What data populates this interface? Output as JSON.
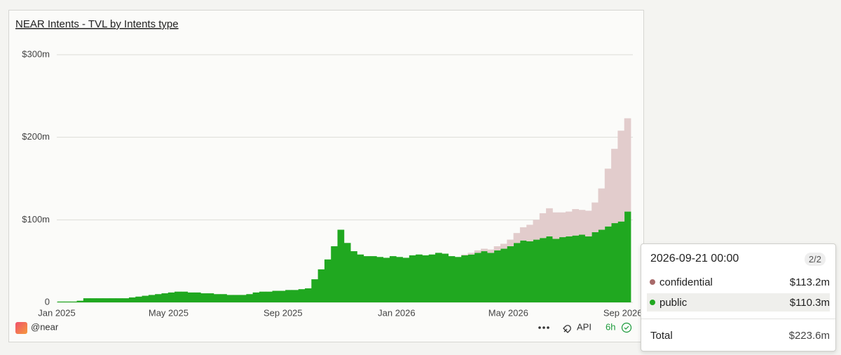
{
  "chart_data": {
    "type": "bar",
    "stacked": true,
    "title": "NEAR Intents - TVL by Intents type",
    "x": [
      "2025-01-05",
      "2025-01-12",
      "2025-01-19",
      "2025-01-26",
      "2025-02-02",
      "2025-02-09",
      "2025-02-16",
      "2025-02-23",
      "2025-03-02",
      "2025-03-09",
      "2025-03-16",
      "2025-03-23",
      "2025-03-30",
      "2025-04-06",
      "2025-04-13",
      "2025-04-20",
      "2025-04-27",
      "2025-05-04",
      "2025-05-11",
      "2025-05-18",
      "2025-05-25",
      "2025-06-01",
      "2025-06-08",
      "2025-06-15",
      "2025-06-22",
      "2025-06-29",
      "2025-07-06",
      "2025-07-13",
      "2025-07-20",
      "2025-07-27",
      "2025-08-03",
      "2025-08-10",
      "2025-08-17",
      "2025-08-24",
      "2025-08-31",
      "2025-09-07",
      "2025-09-14",
      "2025-09-21",
      "2025-09-28",
      "2025-10-05",
      "2025-10-12",
      "2025-10-19",
      "2025-10-26",
      "2025-11-02",
      "2025-11-09",
      "2025-11-16",
      "2025-11-23",
      "2025-11-30",
      "2025-12-07",
      "2025-12-14",
      "2025-12-21",
      "2025-12-28",
      "2026-01-04",
      "2026-01-11",
      "2026-01-18",
      "2026-01-25",
      "2026-02-01",
      "2026-02-08",
      "2026-02-15",
      "2026-02-22",
      "2026-03-01",
      "2026-03-08",
      "2026-03-15",
      "2026-03-22",
      "2026-03-29",
      "2026-04-05",
      "2026-04-12",
      "2026-04-19",
      "2026-04-26",
      "2026-05-03",
      "2026-05-10",
      "2026-05-17",
      "2026-05-24",
      "2026-05-31",
      "2026-06-07",
      "2026-06-14",
      "2026-06-21",
      "2026-06-28",
      "2026-07-05",
      "2026-07-12",
      "2026-07-19",
      "2026-07-26",
      "2026-08-02",
      "2026-08-09",
      "2026-08-16",
      "2026-08-23",
      "2026-08-30",
      "2026-09-06"
    ],
    "series": [
      {
        "name": "public",
        "color": "#20a820",
        "values": [
          1,
          1,
          1,
          2,
          5,
          5,
          5,
          5,
          5,
          5,
          5,
          6,
          7,
          8,
          9,
          10,
          11,
          12,
          13,
          13,
          12,
          12,
          11,
          11,
          10,
          10,
          9,
          9,
          9,
          10,
          12,
          13,
          13,
          14,
          14,
          15,
          15,
          16,
          17,
          28,
          40,
          52,
          68,
          88,
          72,
          62,
          58,
          56,
          56,
          55,
          54,
          56,
          55,
          54,
          57,
          58,
          57,
          58,
          60,
          59,
          56,
          55,
          57,
          58,
          60,
          62,
          60,
          63,
          65,
          68,
          72,
          75,
          74,
          76,
          78,
          80,
          77,
          79,
          80,
          81,
          82,
          80,
          85,
          88,
          92,
          96,
          98,
          110
        ]
      },
      {
        "name": "confidential",
        "color": "#e2cccc",
        "values": [
          0,
          0,
          0,
          0,
          0,
          0,
          0,
          0,
          0,
          0,
          0,
          0,
          0,
          0,
          0,
          0,
          0,
          0,
          0,
          0,
          0,
          0,
          0,
          0,
          0,
          0,
          0,
          0,
          0,
          0,
          0,
          0,
          0,
          0,
          0,
          0,
          0,
          0,
          0,
          0,
          0,
          0,
          0,
          0,
          0,
          0,
          0,
          0,
          0,
          0,
          0,
          0,
          0,
          0,
          0,
          0,
          0,
          0,
          0,
          0,
          0,
          0,
          1,
          2,
          3,
          3,
          4,
          5,
          6,
          8,
          12,
          16,
          20,
          24,
          30,
          34,
          32,
          30,
          30,
          32,
          30,
          31,
          36,
          50,
          70,
          90,
          110,
          113
        ]
      }
    ],
    "xlim": [
      "2025-01-01",
      "2026-09-08"
    ],
    "xticks": [
      {
        "value": "2025-01-01",
        "label": "Jan 2025"
      },
      {
        "value": "2025-05-01",
        "label": "May 2025"
      },
      {
        "value": "2025-09-01",
        "label": "Sep 2025"
      },
      {
        "value": "2026-01-01",
        "label": "Jan 2026"
      },
      {
        "value": "2026-05-01",
        "label": "May 2026"
      },
      {
        "value": "2026-09-01",
        "label": "Sep 2026"
      }
    ],
    "ylim": [
      0,
      300
    ],
    "yticks": [
      0,
      {
        "value": 100,
        "label": "$100m"
      },
      {
        "value": 200,
        "label": "$200m"
      },
      {
        "value": 300,
        "label": "$300m"
      }
    ],
    "grid": true
  },
  "footer": {
    "user": "@near",
    "api": "API",
    "refresh": "6h"
  },
  "tooltip": {
    "date": "2026-09-21 00:00",
    "count": "2/2",
    "rows": [
      "$113.2m",
      "$110.3m"
    ],
    "total_label": "Total",
    "total": "$223.6m"
  }
}
